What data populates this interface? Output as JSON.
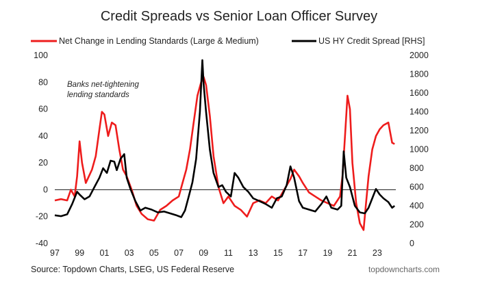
{
  "chart_data": {
    "type": "line",
    "title": "Credit Spreads vs Senior Loan Officer Survey",
    "legend_placement": "top",
    "grid": false,
    "x_tick_labels": [
      "97",
      "99",
      "01",
      "03",
      "05",
      "07",
      "09",
      "11",
      "13",
      "15",
      "17",
      "19",
      "21",
      "23"
    ],
    "x_tick_years": [
      1997,
      1999,
      2001,
      2003,
      2005,
      2007,
      2009,
      2011,
      2013,
      2015,
      2017,
      2019,
      2021,
      2023
    ],
    "xlim": [
      1997,
      2024.5
    ],
    "y_left": {
      "lim": [
        -40,
        100
      ],
      "ticks": [
        -40,
        -20,
        0,
        20,
        40,
        60,
        80,
        100
      ]
    },
    "y_right": {
      "label": "RHS",
      "lim": [
        0,
        2000
      ],
      "ticks": [
        0,
        200,
        400,
        600,
        800,
        1000,
        1200,
        1400,
        1600,
        1800,
        2000
      ]
    },
    "annotation": "Banks net-tightening\nlending standards",
    "source": "Source: Topdown Charts, LSEG, US Federal Reserve",
    "brand": "topdowncharts.com",
    "series": [
      {
        "name": "Net Change in Lending Standards (Large & Medium)",
        "axis": "left",
        "color": "#ee1c1c",
        "x": [
          1997.0,
          1997.5,
          1998.0,
          1998.3,
          1998.6,
          1998.8,
          1999.0,
          1999.2,
          1999.5,
          2000.0,
          2000.3,
          2000.6,
          2000.8,
          2001.0,
          2001.3,
          2001.6,
          2001.9,
          2002.2,
          2002.5,
          2002.8,
          2003.2,
          2003.6,
          2004.0,
          2004.5,
          2005.0,
          2005.5,
          2006.0,
          2006.5,
          2007.0,
          2007.3,
          2007.6,
          2007.9,
          2008.2,
          2008.5,
          2008.8,
          2009.0,
          2009.2,
          2009.5,
          2009.8,
          2010.2,
          2010.6,
          2011.0,
          2011.5,
          2012.0,
          2012.5,
          2013.0,
          2013.5,
          2014.0,
          2014.5,
          2015.0,
          2015.5,
          2016.0,
          2016.3,
          2016.7,
          2017.0,
          2017.5,
          2018.0,
          2018.5,
          2019.0,
          2019.5,
          2020.0,
          2020.2,
          2020.4,
          2020.6,
          2020.8,
          2021.0,
          2021.3,
          2021.6,
          2021.9,
          2022.1,
          2022.3,
          2022.6,
          2022.9,
          2023.2,
          2023.5,
          2023.9,
          2024.2,
          2024.4
        ],
        "values": [
          -8,
          -7,
          -8,
          0,
          -5,
          10,
          36,
          20,
          5,
          15,
          25,
          45,
          58,
          56,
          40,
          50,
          48,
          30,
          15,
          10,
          0,
          -12,
          -18,
          -22,
          -23,
          -15,
          -12,
          -8,
          -5,
          5,
          15,
          30,
          50,
          70,
          80,
          84,
          78,
          55,
          25,
          2,
          -10,
          -5,
          -12,
          -15,
          -20,
          -10,
          -8,
          -10,
          -5,
          -8,
          0,
          8,
          15,
          10,
          5,
          -2,
          -5,
          -8,
          -10,
          -12,
          -5,
          10,
          40,
          70,
          60,
          20,
          -10,
          -25,
          -30,
          -10,
          10,
          30,
          40,
          45,
          48,
          50,
          35,
          34
        ]
      },
      {
        "name": "US HY Credit Spread",
        "axis": "right",
        "color": "#000000",
        "x": [
          1997.0,
          1997.5,
          1998.0,
          1998.4,
          1998.8,
          1999.0,
          1999.4,
          1999.8,
          2000.2,
          2000.6,
          2000.9,
          2001.2,
          2001.5,
          2001.8,
          2002.0,
          2002.3,
          2002.6,
          2002.8,
          2003.1,
          2003.5,
          2003.9,
          2004.3,
          2004.8,
          2005.3,
          2005.8,
          2006.3,
          2006.8,
          2007.2,
          2007.5,
          2007.8,
          2008.1,
          2008.4,
          2008.7,
          2008.9,
          2009.0,
          2009.2,
          2009.5,
          2009.8,
          2010.2,
          2010.5,
          2010.8,
          2011.2,
          2011.5,
          2011.8,
          2012.2,
          2012.6,
          2013.0,
          2013.5,
          2014.0,
          2014.5,
          2014.9,
          2015.3,
          2015.7,
          2016.0,
          2016.3,
          2016.7,
          2017.0,
          2017.5,
          2018.0,
          2018.5,
          2018.9,
          2019.3,
          2019.8,
          2020.1,
          2020.3,
          2020.5,
          2020.8,
          2021.2,
          2021.6,
          2022.0,
          2022.3,
          2022.6,
          2022.9,
          2023.2,
          2023.5,
          2023.9,
          2024.2,
          2024.4
        ],
        "values": [
          300,
          290,
          310,
          420,
          550,
          520,
          470,
          500,
          600,
          700,
          800,
          750,
          880,
          870,
          780,
          900,
          950,
          700,
          580,
          450,
          350,
          380,
          360,
          330,
          340,
          320,
          300,
          280,
          350,
          500,
          650,
          900,
          1400,
          1950,
          1700,
          1400,
          1000,
          750,
          600,
          620,
          550,
          500,
          750,
          700,
          600,
          550,
          480,
          450,
          420,
          380,
          480,
          500,
          620,
          820,
          700,
          450,
          380,
          360,
          340,
          420,
          500,
          380,
          360,
          400,
          980,
          700,
          600,
          400,
          330,
          320,
          380,
          480,
          580,
          520,
          480,
          440,
          380,
          400
        ]
      }
    ]
  }
}
